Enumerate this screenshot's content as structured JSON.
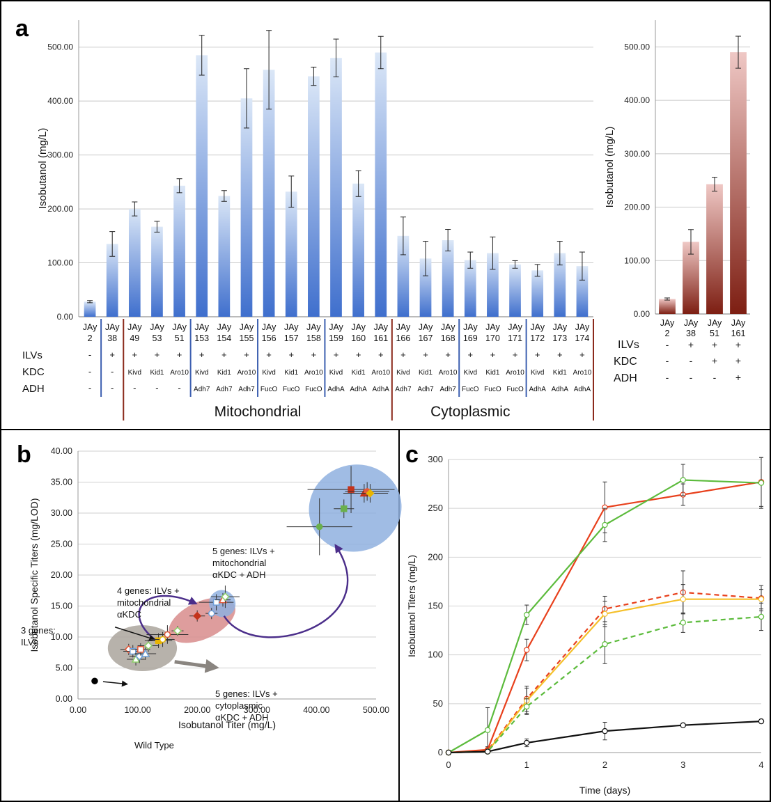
{
  "panels": {
    "a": "a",
    "b": "b",
    "c": "c"
  },
  "colors": {
    "blue_light": "#dbe7f7",
    "blue_dark": "#3f6fcd",
    "red_light": "#efc8c5",
    "red_dark": "#7d1e12",
    "group_blue": "#3c5fb0",
    "group_red": "#8b2a1c",
    "ellipse_blue": "#8fb0df",
    "ellipse_red": "#d88c8c",
    "ellipse_gray": "#aaa59c",
    "arrow_purple": "#4b2e8a",
    "arrow_gray": "#8a8580"
  },
  "chart_data": [
    {
      "panel": "a",
      "type": "bar",
      "ylabel": "Isobutanol (mg/L)",
      "ylim": [
        0,
        550
      ],
      "yticks": [
        "0.00",
        "100.00",
        "200.00",
        "300.00",
        "400.00",
        "500.00"
      ],
      "grid": true,
      "categories": [
        "JAy\n2",
        "JAy\n38",
        "JAy\n49",
        "JAy\n53",
        "JAy\n51",
        "JAy\n153",
        "JAy\n154",
        "JAy\n155",
        "JAy\n156",
        "JAy\n157",
        "JAy\n158",
        "JAy\n159",
        "JAy\n160",
        "JAy\n161",
        "JAy\n166",
        "JAy\n167",
        "JAy\n168",
        "JAy\n169",
        "JAy\n170",
        "JAy\n171",
        "JAy\n172",
        "JAy\n173",
        "JAy\n174"
      ],
      "values": [
        28,
        135,
        200,
        167,
        243,
        485,
        224,
        405,
        458,
        232,
        446,
        480,
        247,
        490,
        150,
        108,
        142,
        105,
        118,
        97,
        86,
        118,
        94
      ],
      "errors": [
        2,
        23,
        13,
        10,
        13,
        37,
        10,
        55,
        73,
        29,
        17,
        35,
        24,
        30,
        35,
        32,
        20,
        15,
        30,
        7,
        11,
        22,
        26
      ],
      "row_labels": [
        "ILVs",
        "KDC",
        "ADH"
      ],
      "ilv_row": [
        "-",
        "+",
        "+",
        "+",
        "+",
        "+",
        "+",
        "+",
        "+",
        "+",
        "+",
        "+",
        "+",
        "+",
        "+",
        "+",
        "+",
        "+",
        "+",
        "+",
        "+",
        "+",
        "+"
      ],
      "kdc_row": [
        "-",
        "-",
        "Kivd",
        "Kid1",
        "Aro10",
        "Kivd",
        "Kid1",
        "Aro10",
        "Kivd",
        "Kid1",
        "Aro10",
        "Kivd",
        "Kid1",
        "Aro10",
        "Kivd",
        "Kid1",
        "Aro10",
        "Kivd",
        "Kid1",
        "Aro10",
        "Kivd",
        "Kid1",
        "Aro10"
      ],
      "adh_row": [
        "-",
        "-",
        "-",
        "-",
        "-",
        "Adh7",
        "Adh7",
        "Adh7",
        "FucO",
        "FucO",
        "FucO",
        "AdhA",
        "AdhA",
        "AdhA",
        "Adh7",
        "Adh7",
        "Adh7",
        "FucO",
        "FucO",
        "FucO",
        "AdhA",
        "AdhA",
        "AdhA"
      ],
      "groups": [
        "Mitochondrial",
        "Cytoplasmic"
      ]
    },
    {
      "panel": "a-right",
      "type": "bar",
      "ylabel": "Isobutanol (mg/L)",
      "ylim": [
        0,
        550
      ],
      "yticks": [
        "0.00",
        "100.00",
        "200.00",
        "300.00",
        "400.00",
        "500.00"
      ],
      "grid": true,
      "categories": [
        "JAy\n2",
        "JAy\n38",
        "JAy\n51",
        "JAy\n161"
      ],
      "values": [
        28,
        135,
        243,
        490
      ],
      "errors": [
        2,
        23,
        13,
        30
      ],
      "row_labels": [
        "ILVs",
        "KDC",
        "ADH"
      ],
      "ilv_row": [
        "-",
        "+",
        "+",
        "+"
      ],
      "kdc_row": [
        "-",
        "-",
        "+",
        "+"
      ],
      "adh_row": [
        "-",
        "-",
        "-",
        "+"
      ]
    },
    {
      "panel": "b",
      "type": "scatter",
      "xlabel": "Isobutanol Titer (mg/L)",
      "ylabel": "Isobutanol Specific Titers (mg/LOD)",
      "xlim": [
        0,
        500
      ],
      "ylim": [
        0,
        40
      ],
      "xticks": [
        "0.00",
        "100.00",
        "200.00",
        "300.00",
        "400.00",
        "500.00"
      ],
      "yticks": [
        "0.00",
        "5.00",
        "10.00",
        "15.00",
        "20.00",
        "25.00",
        "30.00",
        "35.00",
        "40.00"
      ],
      "grid": true,
      "ellipses": [
        {
          "color": "gray",
          "cx": 108,
          "cy": 8.2,
          "rx": 58,
          "ry": 3.7,
          "angle": 0
        },
        {
          "color": "red",
          "cx": 208,
          "cy": 12.7,
          "rx": 60,
          "ry": 3.0,
          "angle": 25
        },
        {
          "color": "blue",
          "cx": 242,
          "cy": 15.4,
          "rx": 22,
          "ry": 2.2,
          "angle": 30
        },
        {
          "color": "blue",
          "cx": 465,
          "cy": 30.8,
          "rx": 78,
          "ry": 7.0,
          "angle": 15
        }
      ],
      "points": [
        {
          "x": 28,
          "y": 2.9,
          "xerr": 0,
          "yerr": 0,
          "color": "#000000",
          "shape": "circle",
          "filled": true
        },
        {
          "x": 85,
          "y": 8.0,
          "xerr": 14,
          "yerr": 0.9,
          "color": "#e25a3a",
          "shape": "diamond",
          "filled": false
        },
        {
          "x": 92,
          "y": 7.7,
          "xerr": 16,
          "yerr": 1.0,
          "color": "#6f9fd8",
          "shape": "square",
          "filled": false
        },
        {
          "x": 97,
          "y": 6.4,
          "xerr": 15,
          "yerr": 1.0,
          "color": "#8dd06a",
          "shape": "triangle",
          "filled": false
        },
        {
          "x": 103,
          "y": 6.9,
          "xerr": 17,
          "yerr": 1.1,
          "color": "#6f9fd8",
          "shape": "diamond",
          "filled": false
        },
        {
          "x": 105,
          "y": 8.0,
          "xerr": 16,
          "yerr": 1.0,
          "color": "#e25a3a",
          "shape": "square",
          "filled": false
        },
        {
          "x": 113,
          "y": 7.3,
          "xerr": 18,
          "yerr": 1.0,
          "color": "#6f9fd8",
          "shape": "triangle",
          "filled": false
        },
        {
          "x": 118,
          "y": 8.6,
          "xerr": 18,
          "yerr": 1.0,
          "color": "#8dd06a",
          "shape": "diamond",
          "filled": false
        },
        {
          "x": 135,
          "y": 9.4,
          "xerr": 23,
          "yerr": 1.2,
          "color": "#e8b400",
          "shape": "square",
          "filled": true
        },
        {
          "x": 142,
          "y": 9.6,
          "xerr": 20,
          "yerr": 1.2,
          "color": "#e8b400",
          "shape": "circle",
          "filled": false
        },
        {
          "x": 150,
          "y": 10.4,
          "xerr": 35,
          "yerr": 1.5,
          "color": "#e25a3a",
          "shape": "circle",
          "filled": false
        },
        {
          "x": 167,
          "y": 11.0,
          "xerr": 10,
          "yerr": 0.8,
          "color": "#8dd06a",
          "shape": "diamond",
          "filled": false
        },
        {
          "x": 200,
          "y": 13.4,
          "xerr": 13,
          "yerr": 0.9,
          "color": "#c4331b",
          "shape": "diamond",
          "filled": true
        },
        {
          "x": 224,
          "y": 13.8,
          "xerr": 10,
          "yerr": 0.9,
          "color": "#6f9fd8",
          "shape": "circle",
          "filled": false
        },
        {
          "x": 232,
          "y": 15.6,
          "xerr": 29,
          "yerr": 1.3,
          "color": "#6f9fd8",
          "shape": "square",
          "filled": false
        },
        {
          "x": 243,
          "y": 16.0,
          "xerr": 13,
          "yerr": 1.1,
          "color": "#e25a3a",
          "shape": "triangle",
          "filled": false
        },
        {
          "x": 247,
          "y": 16.5,
          "xerr": 24,
          "yerr": 1.8,
          "color": "#8dd06a",
          "shape": "diamond",
          "filled": false
        },
        {
          "x": 405,
          "y": 27.8,
          "xerr": 55,
          "yerr": 4.6,
          "color": "#6ab04c",
          "shape": "circle",
          "filled": true
        },
        {
          "x": 446,
          "y": 30.7,
          "xerr": 17,
          "yerr": 1.5,
          "color": "#6ab04c",
          "shape": "square",
          "filled": true
        },
        {
          "x": 458,
          "y": 33.8,
          "xerr": 73,
          "yerr": 3.8,
          "color": "#c4331b",
          "shape": "square",
          "filled": true
        },
        {
          "x": 480,
          "y": 33.2,
          "xerr": 35,
          "yerr": 1.5,
          "color": "#c4331b",
          "shape": "triangle",
          "filled": true
        },
        {
          "x": 485,
          "y": 33.5,
          "xerr": 37,
          "yerr": 1.5,
          "color": "#e25a3a",
          "shape": "circle",
          "filled": true
        },
        {
          "x": 490,
          "y": 33.2,
          "xerr": 30,
          "yerr": 1.5,
          "color": "#e8b400",
          "shape": "diamond",
          "filled": true
        }
      ],
      "annotations": [
        {
          "id": "ann-5genes-mito",
          "lines": [
            "5 genes: ILVs +",
            "mitochondrial",
            "αKDC + ADH"
          ]
        },
        {
          "id": "ann-4genes",
          "lines": [
            "4 genes: ILVs +",
            "mitochondrial",
            "αKDC"
          ]
        },
        {
          "id": "ann-3genes",
          "lines": [
            "3 genes:",
            "ILVs"
          ]
        },
        {
          "id": "ann-5genes-cyto",
          "lines": [
            "5 genes: ILVs +",
            "cytoplasmic",
            "αKDC + ADH"
          ]
        },
        {
          "id": "ann-wildtype",
          "lines": [
            "Wild Type"
          ]
        }
      ]
    },
    {
      "panel": "c",
      "type": "line",
      "xlabel": "Time (days)",
      "ylabel": "Isobutanol Titers (mg/L)",
      "xlim": [
        0,
        4
      ],
      "ylim": [
        0,
        300
      ],
      "xticks": [
        "0",
        "1",
        "2",
        "3",
        "4"
      ],
      "yticks": [
        "0",
        "50",
        "100",
        "150",
        "200",
        "250",
        "300"
      ],
      "grid": true,
      "x": [
        0,
        0.5,
        1,
        2,
        3,
        4
      ],
      "series": [
        {
          "color": "#e8401c",
          "dashed": false,
          "values": [
            0,
            3,
            105,
            251,
            264,
            277
          ],
          "errors": [
            0,
            3,
            11,
            26,
            11,
            25
          ]
        },
        {
          "color": "#5cbb3c",
          "dashed": false,
          "values": [
            0,
            23,
            141,
            233,
            279,
            276
          ],
          "errors": [
            0,
            23,
            10,
            17,
            16,
            26
          ]
        },
        {
          "color": "#e8401c",
          "dashed": true,
          "values": [
            0,
            2,
            55,
            147,
            164,
            158
          ],
          "errors": [
            0,
            2,
            13,
            13,
            22,
            13
          ]
        },
        {
          "color": "#f5c02a",
          "dashed": false,
          "values": [
            0,
            1,
            53,
            142,
            157,
            157
          ],
          "errors": [
            0,
            1,
            13,
            13,
            15,
            10
          ]
        },
        {
          "color": "#5cbb3c",
          "dashed": true,
          "values": [
            0,
            1,
            47,
            111,
            133,
            139
          ],
          "errors": [
            0,
            1,
            8,
            20,
            10,
            14
          ]
        },
        {
          "color": "#111111",
          "dashed": false,
          "values": [
            0,
            1,
            10,
            22,
            28,
            32
          ],
          "errors": [
            0,
            1,
            4,
            9,
            2,
            2
          ]
        }
      ]
    }
  ]
}
